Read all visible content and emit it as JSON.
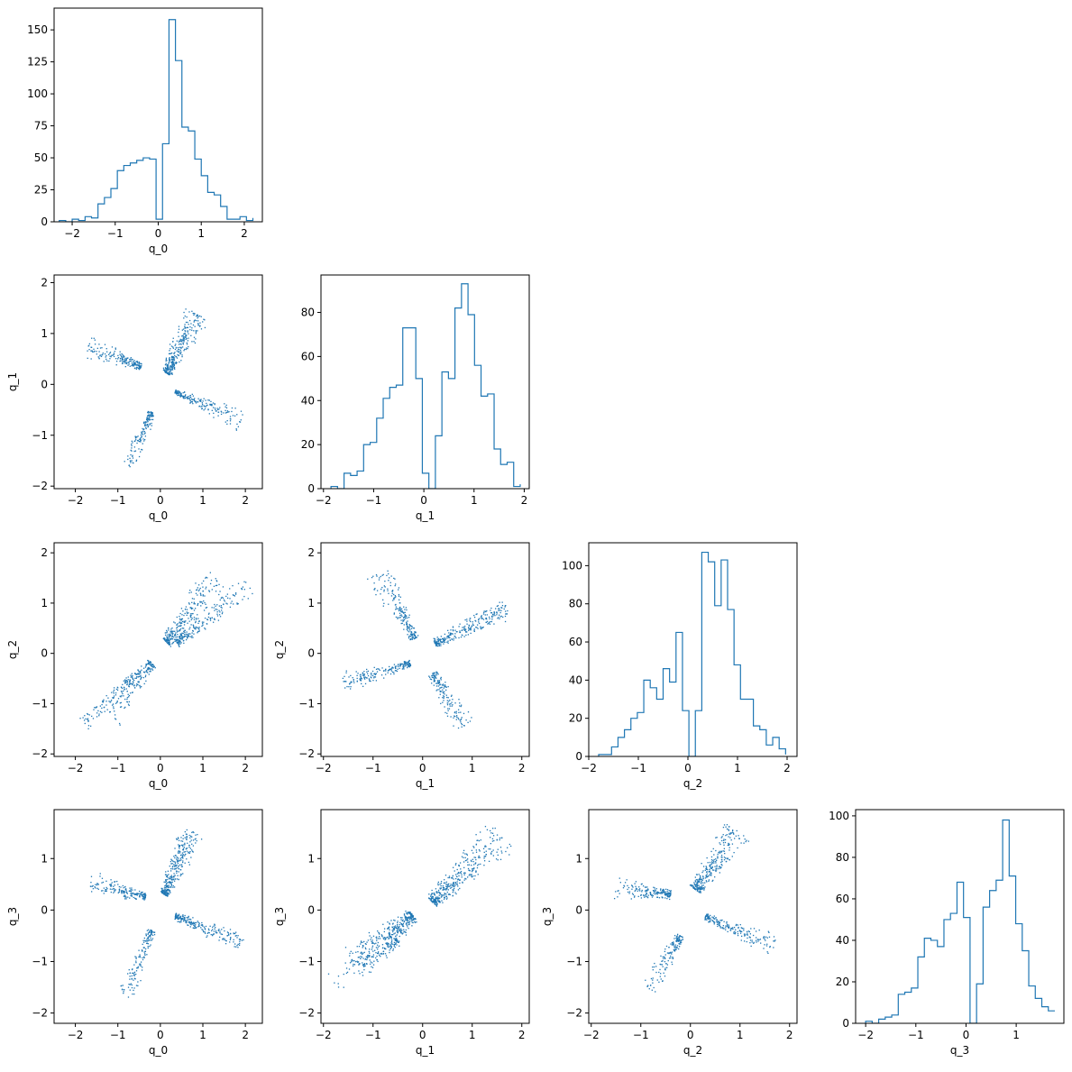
{
  "figure": {
    "variables": [
      "q_0",
      "q_1",
      "q_2",
      "q_3"
    ],
    "scatter_color": "#1f77b4",
    "hist_color": "#1f77b4"
  },
  "chart_data": [
    {
      "type": "histogram",
      "variable": "q_0",
      "xlabel": "q_0",
      "ylabel": "",
      "grid": false,
      "xlim": [
        -2.42,
        2.42
      ],
      "ylim": [
        0,
        167
      ],
      "xticks": [
        -2,
        -1,
        0,
        1,
        2
      ],
      "yticks": [
        0,
        25,
        50,
        75,
        100,
        125,
        150
      ],
      "bin_edges": [
        -2.3,
        -2.15,
        -2.0,
        -1.85,
        -1.7,
        -1.55,
        -1.4,
        -1.25,
        -1.1,
        -0.95,
        -0.8,
        -0.65,
        -0.5,
        -0.35,
        -0.2,
        -0.05,
        0.1,
        0.25,
        0.4,
        0.55,
        0.7,
        0.85,
        1.0,
        1.15,
        1.3,
        1.45,
        1.6,
        1.75,
        1.9,
        2.05,
        2.2
      ],
      "counts": [
        1,
        0,
        2,
        1,
        4,
        3,
        14,
        19,
        26,
        40,
        44,
        46,
        48,
        50,
        49,
        2,
        61,
        158,
        126,
        74,
        71,
        49,
        36,
        23,
        21,
        12,
        2,
        2,
        4,
        1,
        3
      ]
    },
    {
      "type": "scatter",
      "xvar": "q_0",
      "yvar": "q_1",
      "xlabel": "q_0",
      "ylabel": "q_1",
      "xlim": [
        -2.5,
        2.4
      ],
      "ylim": [
        -2.05,
        2.15
      ],
      "xticks": [
        -2,
        -1,
        0,
        1,
        2
      ],
      "yticks": [
        -2,
        -1,
        0,
        1,
        2
      ],
      "clusters": [
        {
          "start": [
            0.15,
            0.22
          ],
          "end": [
            0.85,
            1.4
          ],
          "spread": [
            0.25,
            0.8
          ],
          "n": 320
        },
        {
          "start": [
            -0.45,
            0.35
          ],
          "end": [
            -1.7,
            0.75
          ],
          "spread": [
            0.15,
            0.55
          ],
          "n": 180
        },
        {
          "start": [
            0.35,
            -0.15
          ],
          "end": [
            1.9,
            -0.7
          ],
          "spread": [
            0.1,
            0.6
          ],
          "n": 200
        },
        {
          "start": [
            -0.2,
            -0.55
          ],
          "end": [
            -0.75,
            -1.6
          ],
          "spread": [
            0.2,
            0.5
          ],
          "n": 150
        }
      ]
    },
    {
      "type": "histogram",
      "variable": "q_1",
      "xlabel": "q_1",
      "ylabel": "",
      "grid": false,
      "xlim": [
        -2.05,
        2.1
      ],
      "ylim": [
        0,
        97
      ],
      "xticks": [
        -2,
        -1,
        0,
        1,
        2
      ],
      "yticks": [
        0,
        20,
        40,
        60,
        80
      ],
      "bin_edges": [
        -1.85,
        -1.72,
        -1.59,
        -1.46,
        -1.33,
        -1.2,
        -1.07,
        -0.94,
        -0.81,
        -0.68,
        -0.55,
        -0.42,
        -0.29,
        -0.16,
        -0.03,
        0.1,
        0.23,
        0.36,
        0.49,
        0.62,
        0.75,
        0.88,
        1.01,
        1.14,
        1.27,
        1.4,
        1.53,
        1.66,
        1.79,
        1.92
      ],
      "counts": [
        1,
        0,
        7,
        6,
        8,
        20,
        21,
        32,
        41,
        46,
        47,
        73,
        73,
        50,
        7,
        0,
        24,
        53,
        50,
        82,
        93,
        79,
        56,
        42,
        43,
        18,
        11,
        12,
        1,
        2
      ]
    },
    {
      "type": "scatter",
      "xvar": "q_0",
      "yvar": "q_2",
      "xlabel": "q_0",
      "ylabel": "q_2",
      "xlim": [
        -2.5,
        2.4
      ],
      "ylim": [
        -2.05,
        2.2
      ],
      "xticks": [
        -2,
        -1,
        0,
        1,
        2
      ],
      "yticks": [
        -2,
        -1,
        0,
        1,
        2
      ],
      "clusters": [
        {
          "start": [
            0.15,
            0.22
          ],
          "end": [
            1.3,
            1.5
          ],
          "spread": [
            0.3,
            0.85
          ],
          "n": 260
        },
        {
          "start": [
            0.4,
            0.2
          ],
          "end": [
            2.1,
            1.35
          ],
          "spread": [
            0.2,
            0.55
          ],
          "n": 190
        },
        {
          "start": [
            -0.2,
            -0.2
          ],
          "end": [
            -1.2,
            -1.2
          ],
          "spread": [
            0.25,
            0.75
          ],
          "n": 180
        },
        {
          "start": [
            -0.5,
            -0.35
          ],
          "end": [
            -1.8,
            -1.4
          ],
          "spread": [
            0.15,
            0.45
          ],
          "n": 100
        }
      ]
    },
    {
      "type": "scatter",
      "xvar": "q_1",
      "yvar": "q_2",
      "xlabel": "q_1",
      "ylabel": "q_2",
      "xlim": [
        -2.05,
        2.15
      ],
      "ylim": [
        -2.05,
        2.2
      ],
      "xticks": [
        -2,
        -1,
        0,
        1,
        2
      ],
      "yticks": [
        -2,
        -1,
        0,
        1,
        2
      ],
      "clusters": [
        {
          "start": [
            -0.15,
            0.3
          ],
          "end": [
            -0.9,
            1.6
          ],
          "spread": [
            0.2,
            0.7
          ],
          "n": 200
        },
        {
          "start": [
            0.25,
            0.2
          ],
          "end": [
            1.7,
            0.9
          ],
          "spread": [
            0.2,
            0.5
          ],
          "n": 270
        },
        {
          "start": [
            -0.25,
            -0.2
          ],
          "end": [
            -1.6,
            -0.6
          ],
          "spread": [
            0.15,
            0.5
          ],
          "n": 190
        },
        {
          "start": [
            0.2,
            -0.4
          ],
          "end": [
            0.85,
            -1.5
          ],
          "spread": [
            0.2,
            0.6
          ],
          "n": 160
        }
      ]
    },
    {
      "type": "histogram",
      "variable": "q_2",
      "xlabel": "q_2",
      "ylabel": "",
      "grid": false,
      "xlim": [
        -2.0,
        2.2
      ],
      "ylim": [
        0,
        112
      ],
      "xticks": [
        -2,
        -1,
        0,
        1,
        2
      ],
      "yticks": [
        0,
        20,
        40,
        60,
        80,
        100
      ],
      "bin_edges": [
        -1.8,
        -1.67,
        -1.54,
        -1.41,
        -1.28,
        -1.15,
        -1.02,
        -0.89,
        -0.76,
        -0.63,
        -0.5,
        -0.37,
        -0.24,
        -0.11,
        0.02,
        0.15,
        0.28,
        0.41,
        0.54,
        0.67,
        0.8,
        0.93,
        1.06,
        1.19,
        1.32,
        1.45,
        1.58,
        1.71,
        1.84,
        1.97
      ],
      "counts": [
        1,
        1,
        5,
        10,
        14,
        20,
        23,
        40,
        36,
        30,
        46,
        39,
        65,
        24,
        0,
        24,
        107,
        102,
        79,
        103,
        77,
        48,
        30,
        30,
        16,
        14,
        6,
        10,
        4,
        1
      ]
    },
    {
      "type": "scatter",
      "xvar": "q_0",
      "yvar": "q_3",
      "xlabel": "q_0",
      "ylabel": "q_3",
      "xlim": [
        -2.5,
        2.4
      ],
      "ylim": [
        -2.2,
        1.95
      ],
      "xticks": [
        -2,
        -1,
        0,
        1,
        2
      ],
      "yticks": [
        -2,
        -1,
        0,
        1
      ],
      "clusters": [
        {
          "start": [
            0.1,
            0.3
          ],
          "end": [
            0.75,
            1.55
          ],
          "spread": [
            0.25,
            0.75
          ],
          "n": 320
        },
        {
          "start": [
            -0.35,
            0.25
          ],
          "end": [
            -1.65,
            0.55
          ],
          "spread": [
            0.2,
            0.5
          ],
          "n": 180
        },
        {
          "start": [
            0.35,
            -0.12
          ],
          "end": [
            1.95,
            -0.65
          ],
          "spread": [
            0.15,
            0.5
          ],
          "n": 220
        },
        {
          "start": [
            -0.2,
            -0.4
          ],
          "end": [
            -0.85,
            -1.7
          ],
          "spread": [
            0.2,
            0.5
          ],
          "n": 150
        }
      ]
    },
    {
      "type": "scatter",
      "xvar": "q_1",
      "yvar": "q_3",
      "xlabel": "q_1",
      "ylabel": "q_3",
      "xlim": [
        -2.05,
        2.15
      ],
      "ylim": [
        -2.2,
        1.95
      ],
      "xticks": [
        -2,
        -1,
        0,
        1,
        2
      ],
      "yticks": [
        -2,
        -1,
        0,
        1
      ],
      "clusters": [
        {
          "start": [
            0.2,
            0.15
          ],
          "end": [
            1.6,
            1.45
          ],
          "spread": [
            0.35,
            0.9
          ],
          "n": 380
        },
        {
          "start": [
            -0.2,
            -0.1
          ],
          "end": [
            -1.4,
            -1.1
          ],
          "spread": [
            0.35,
            0.85
          ],
          "n": 380
        },
        {
          "start": [
            -0.5,
            -0.6
          ],
          "end": [
            -1.8,
            -1.4
          ],
          "spread": [
            0.2,
            0.5
          ],
          "n": 80
        }
      ]
    },
    {
      "type": "scatter",
      "xvar": "q_2",
      "yvar": "q_3",
      "xlabel": "q_2",
      "ylabel": "q_3",
      "xlim": [
        -2.05,
        2.15
      ],
      "ylim": [
        -2.2,
        1.95
      ],
      "xticks": [
        -2,
        -1,
        0,
        1,
        2
      ],
      "yticks": [
        -2,
        -1,
        0,
        1
      ],
      "clusters": [
        {
          "start": [
            0.1,
            0.4
          ],
          "end": [
            0.95,
            1.55
          ],
          "spread": [
            0.3,
            0.75
          ],
          "n": 300
        },
        {
          "start": [
            -0.4,
            0.3
          ],
          "end": [
            -1.5,
            0.45
          ],
          "spread": [
            0.2,
            0.5
          ],
          "n": 180
        },
        {
          "start": [
            0.3,
            -0.12
          ],
          "end": [
            1.7,
            -0.7
          ],
          "spread": [
            0.15,
            0.5
          ],
          "n": 200
        },
        {
          "start": [
            -0.2,
            -0.5
          ],
          "end": [
            -0.8,
            -1.55
          ],
          "spread": [
            0.2,
            0.55
          ],
          "n": 150
        }
      ]
    },
    {
      "type": "histogram",
      "variable": "q_3",
      "xlabel": "q_3",
      "ylabel": "",
      "grid": false,
      "xlim": [
        -2.2,
        1.95
      ],
      "ylim": [
        0,
        103
      ],
      "xticks": [
        -2,
        -1,
        0,
        1
      ],
      "yticks": [
        0,
        20,
        40,
        60,
        80,
        100
      ],
      "bin_edges": [
        -2.0,
        -1.87,
        -1.74,
        -1.61,
        -1.48,
        -1.35,
        -1.22,
        -1.09,
        -0.96,
        -0.83,
        -0.7,
        -0.57,
        -0.44,
        -0.31,
        -0.18,
        -0.05,
        0.08,
        0.21,
        0.34,
        0.47,
        0.6,
        0.73,
        0.86,
        0.99,
        1.12,
        1.25,
        1.38,
        1.51,
        1.64,
        1.77
      ],
      "counts": [
        1,
        0,
        2,
        3,
        4,
        14,
        15,
        17,
        32,
        41,
        40,
        37,
        50,
        53,
        68,
        51,
        0,
        19,
        56,
        64,
        69,
        98,
        71,
        48,
        35,
        18,
        12,
        8,
        6,
        6
      ]
    }
  ]
}
